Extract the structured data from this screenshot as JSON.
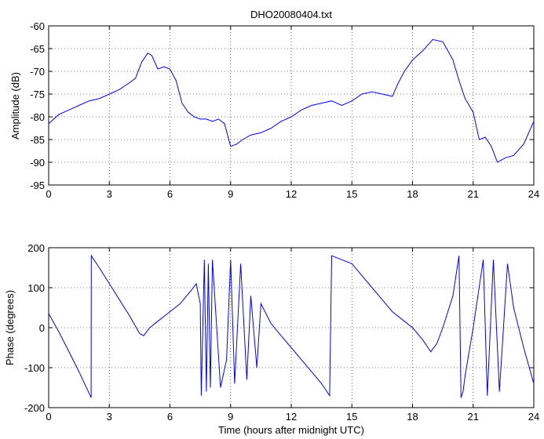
{
  "chart_data": [
    {
      "type": "line",
      "title": "DHO20080404.txt",
      "xlabel": "",
      "ylabel": "Amplitude (dB)",
      "xlim": [
        0,
        24
      ],
      "ylim": [
        -95,
        -60
      ],
      "xticks": [
        0,
        3,
        6,
        9,
        12,
        15,
        18,
        21,
        24
      ],
      "yticks": [
        -95,
        -90,
        -85,
        -80,
        -75,
        -70,
        -65,
        -60
      ],
      "grid": "on (dotted)",
      "series": [
        {
          "color": "#0000ff",
          "x": [
            0,
            0.5,
            1,
            1.5,
            2,
            2.5,
            3,
            3.5,
            4,
            4.3,
            4.6,
            4.9,
            5.1,
            5.4,
            5.7,
            6.0,
            6.3,
            6.6,
            6.9,
            7.2,
            7.5,
            7.8,
            8.1,
            8.4,
            8.7,
            9.0,
            9.3,
            9.6,
            10,
            10.5,
            11,
            11.5,
            12,
            12.5,
            13,
            13.5,
            14,
            14.5,
            15,
            15.5,
            16,
            16.5,
            17,
            17.3,
            17.6,
            18,
            18.5,
            19,
            19.5,
            20,
            20.3,
            20.6,
            21,
            21.3,
            21.6,
            21.9,
            22.2,
            22.6,
            23,
            23.5,
            24
          ],
          "y": [
            -81.5,
            -79.5,
            -78.5,
            -77.5,
            -76.5,
            -76,
            -75,
            -74,
            -72.5,
            -71.5,
            -68,
            -66,
            -66.5,
            -69.5,
            -69,
            -69.5,
            -72,
            -77,
            -79,
            -80,
            -80.5,
            -80.5,
            -81,
            -80.5,
            -81.5,
            -86.5,
            -86,
            -85,
            -84,
            -83.5,
            -82.5,
            -81,
            -80,
            -78.5,
            -77.5,
            -77,
            -76.5,
            -77.5,
            -76.5,
            -75,
            -74.5,
            -75,
            -75.5,
            -72.5,
            -70,
            -67.5,
            -65.5,
            -63,
            -63.5,
            -67.5,
            -72,
            -76,
            -79,
            -85,
            -84.5,
            -86.5,
            -90,
            -89,
            -88.5,
            -86,
            -81
          ]
        }
      ]
    },
    {
      "type": "line",
      "title": "",
      "xlabel": "Time (hours after midnight UTC)",
      "ylabel": "Phase (degrees)",
      "xlim": [
        0,
        24
      ],
      "ylim": [
        -200,
        200
      ],
      "xticks": [
        0,
        3,
        6,
        9,
        12,
        15,
        18,
        21,
        24
      ],
      "yticks": [
        -200,
        -100,
        0,
        100,
        200
      ],
      "grid": "on (dotted)",
      "series": [
        {
          "color": "#0000ff",
          "x": [
            0,
            0.5,
            1,
            1.5,
            2.1,
            2.11,
            2.5,
            3,
            3.5,
            4,
            4.5,
            4.7,
            5,
            5.5,
            6,
            6.5,
            7,
            7.3,
            7.5,
            7.55,
            7.7,
            7.8,
            7.9,
            8.0,
            8.1,
            8.5,
            8.8,
            9.0,
            9.2,
            9.5,
            9.8,
            10,
            10.3,
            10.5,
            11,
            11.5,
            12,
            12.5,
            13,
            13.5,
            13.9,
            14.0,
            14.5,
            15,
            15.5,
            16,
            16.5,
            17,
            17.5,
            18,
            18.5,
            18.9,
            19.2,
            19.5,
            20,
            20.3,
            20.4,
            20.5,
            20.6,
            20.8,
            21,
            21.5,
            21.7,
            22,
            22.3,
            22.7,
            23,
            23.5,
            24
          ],
          "y": [
            35,
            -10,
            -60,
            -110,
            -175,
            180,
            150,
            110,
            70,
            30,
            -15,
            -20,
            0,
            20,
            40,
            60,
            90,
            110,
            60,
            -170,
            170,
            -160,
            160,
            -150,
            170,
            -150,
            -80,
            170,
            -140,
            160,
            -130,
            80,
            -100,
            60,
            10,
            -20,
            -50,
            -80,
            -110,
            -140,
            -170,
            180,
            170,
            160,
            130,
            100,
            70,
            40,
            20,
            0,
            -30,
            -60,
            -40,
            0,
            80,
            180,
            -175,
            -160,
            -120,
            -60,
            0,
            170,
            -170,
            170,
            -160,
            160,
            50,
            -50,
            -140
          ]
        }
      ]
    }
  ]
}
